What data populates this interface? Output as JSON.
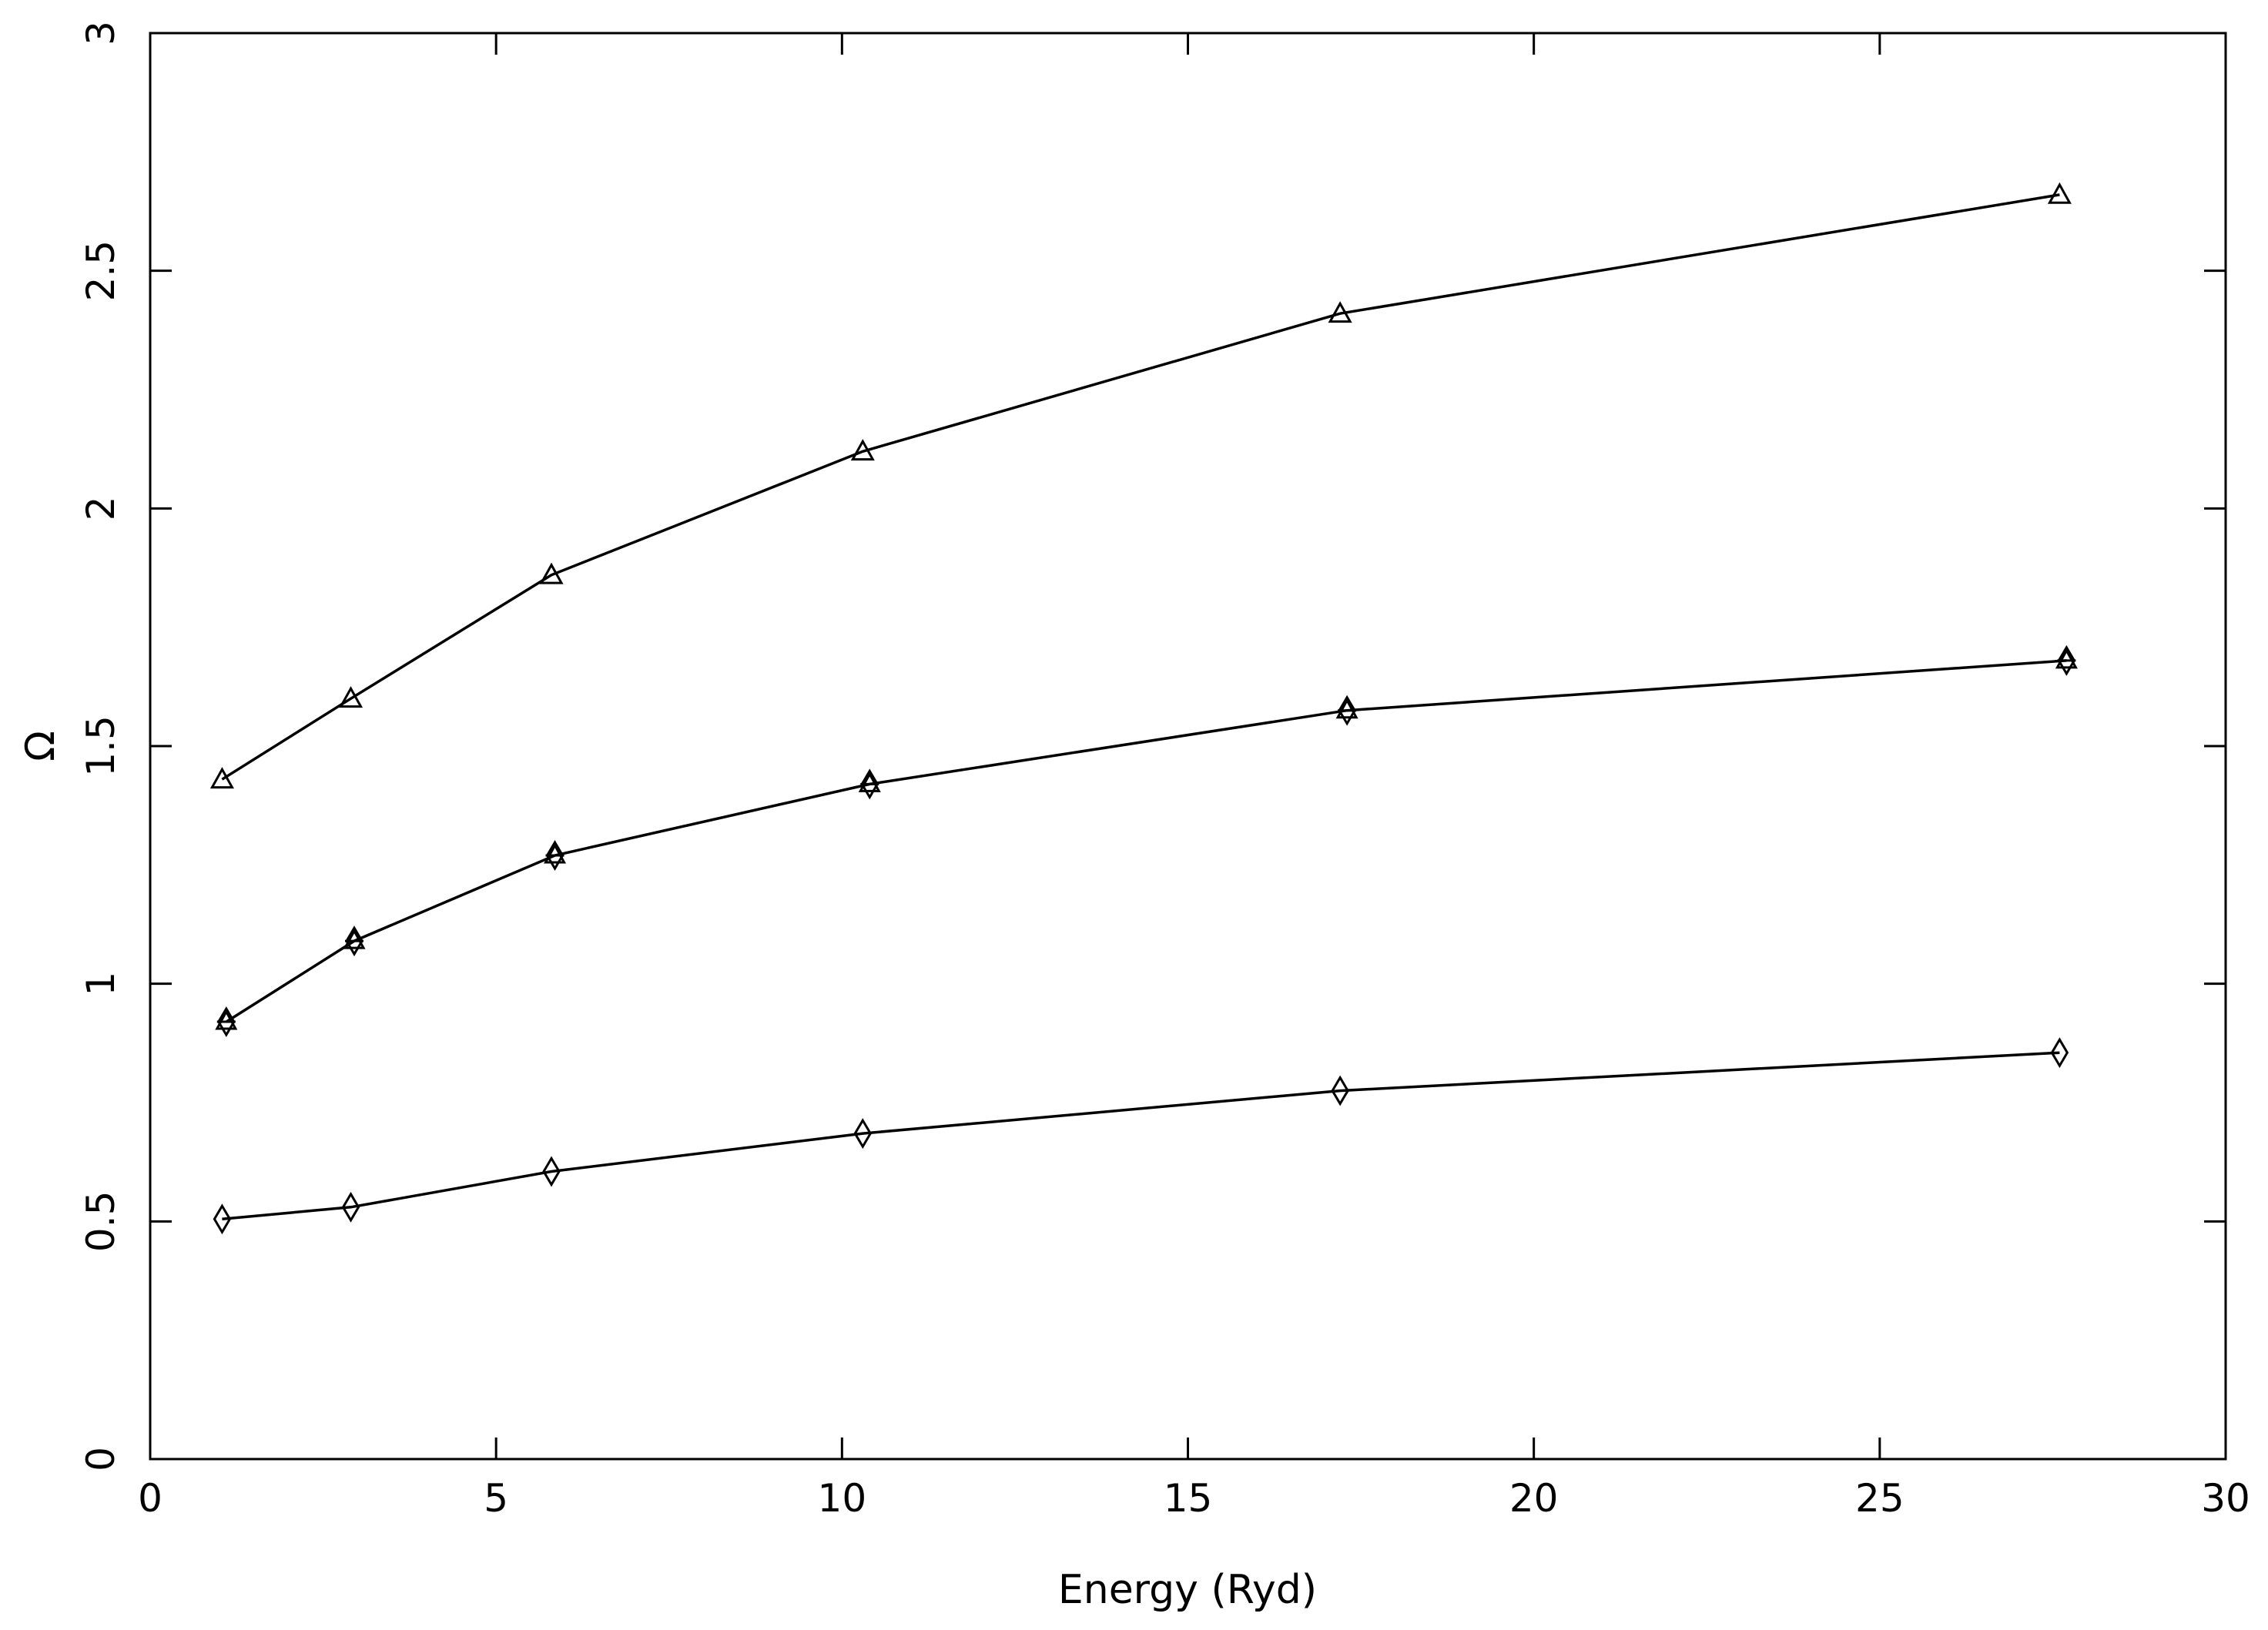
{
  "chart_data": {
    "type": "line",
    "title": "",
    "xlabel": "Energy (Ryd)",
    "ylabel": "Ω",
    "xlim": [
      0,
      30
    ],
    "ylim": [
      0,
      3
    ],
    "xticks": [
      0,
      5,
      10,
      15,
      20,
      25,
      30
    ],
    "yticks": [
      0,
      0.5,
      1,
      1.5,
      2,
      2.5,
      3
    ],
    "xtick_labels": [
      "0",
      "5",
      "10",
      "15",
      "20",
      "25",
      "30"
    ],
    "ytick_labels": [
      "0",
      "0.5",
      "1",
      "1.5",
      "2",
      "2.5",
      "3"
    ],
    "grid": false,
    "legend": "none",
    "series": [
      {
        "name": "triangle-series",
        "marker": "triangle",
        "x": [
          1.04,
          2.9,
          5.8,
          10.3,
          17.2,
          27.6
        ],
        "y": [
          1.43,
          1.6,
          1.86,
          2.12,
          2.41,
          2.66
        ]
      },
      {
        "name": "star-diamond-series",
        "marker": "star-diamond",
        "x": [
          1.1,
          2.95,
          5.85,
          10.4,
          17.3,
          27.7
        ],
        "y": [
          0.92,
          1.09,
          1.27,
          1.42,
          1.575,
          1.68
        ]
      },
      {
        "name": "diamond-series",
        "marker": "diamond",
        "x": [
          1.04,
          2.9,
          5.8,
          10.3,
          17.2,
          27.6
        ],
        "y": [
          0.505,
          0.53,
          0.605,
          0.685,
          0.775,
          0.855
        ]
      }
    ]
  }
}
